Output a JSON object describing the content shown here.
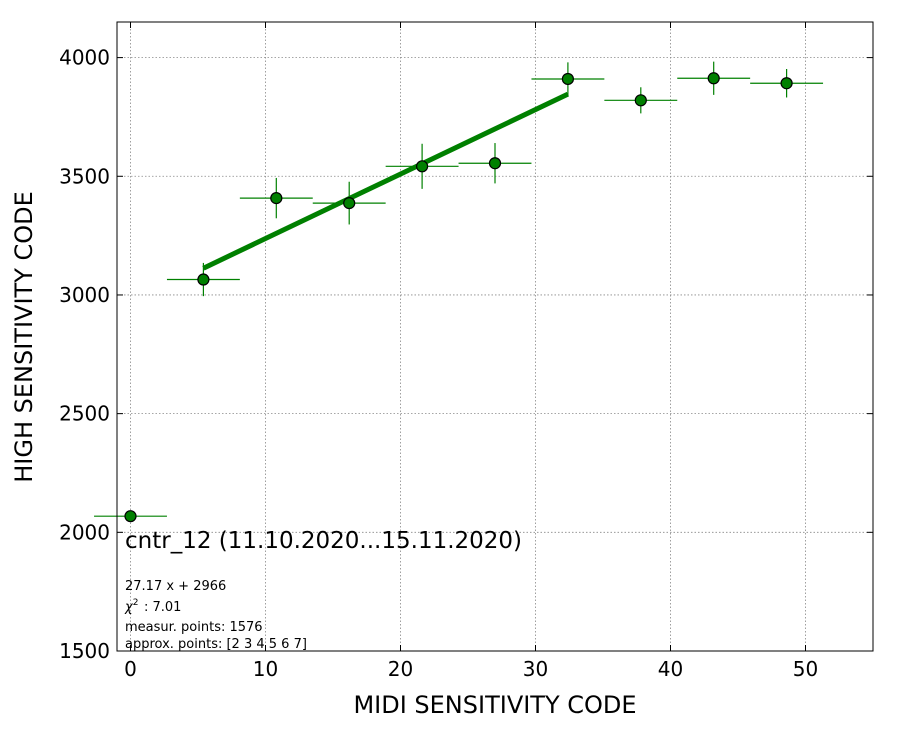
{
  "chart_data": {
    "type": "scatter",
    "xlabel": "MIDI SENSITIVITY CODE",
    "ylabel": "HIGH SENSITIVITY CODE",
    "xlim": [
      -1,
      55
    ],
    "ylim": [
      1500,
      4150
    ],
    "xticks": [
      0,
      10,
      20,
      30,
      40,
      50
    ],
    "yticks": [
      1500,
      2000,
      2500,
      3000,
      3500,
      4000
    ],
    "grid": true,
    "points": [
      {
        "x": 0.0,
        "y": 2068,
        "xerr": 2.7,
        "yerr": 0
      },
      {
        "x": 5.4,
        "y": 3065,
        "xerr": 2.7,
        "yerr": 70
      },
      {
        "x": 10.8,
        "y": 3408,
        "xerr": 2.7,
        "yerr": 85
      },
      {
        "x": 16.2,
        "y": 3387,
        "xerr": 2.7,
        "yerr": 90
      },
      {
        "x": 21.6,
        "y": 3542,
        "xerr": 2.7,
        "yerr": 95
      },
      {
        "x": 27.0,
        "y": 3555,
        "xerr": 2.7,
        "yerr": 85
      },
      {
        "x": 32.4,
        "y": 3910,
        "xerr": 2.7,
        "yerr": 70
      },
      {
        "x": 37.8,
        "y": 3820,
        "xerr": 2.7,
        "yerr": 55
      },
      {
        "x": 43.2,
        "y": 3913,
        "xerr": 2.7,
        "yerr": 70
      },
      {
        "x": 48.6,
        "y": 3892,
        "xerr": 2.7,
        "yerr": 60
      }
    ],
    "fit": {
      "slope": 27.17,
      "intercept": 2966,
      "x_start": 5.4,
      "x_end": 32.4
    },
    "marker_color": "#008000",
    "line_color": "#008000",
    "annotations": {
      "title": "cntr_12 (11.10.2020...15.11.2020)",
      "fit_text": "27.17 x + 2966",
      "chi2_text": ": 7.01",
      "measur_text": "measur. points: 1576",
      "approx_text": "approx. points: [2 3 4 5 6 7]"
    }
  }
}
